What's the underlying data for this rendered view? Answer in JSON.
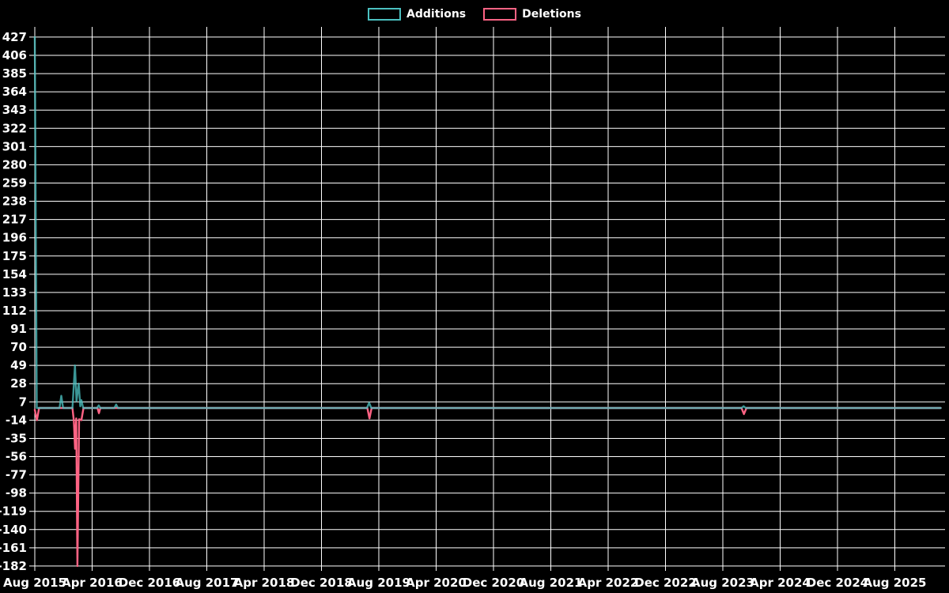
{
  "page": {
    "background": "#000000"
  },
  "legend": {
    "position": "top-center",
    "items": [
      {
        "label": "Additions",
        "color": "#4bc0c0"
      },
      {
        "label": "Deletions",
        "color": "#ff6384"
      }
    ]
  },
  "chart_data": {
    "type": "line",
    "title": "",
    "xlabel": "",
    "ylabel": "",
    "grid": true,
    "legend_position": "top-center",
    "background": "#000000",
    "grid_color": "#ffffff",
    "text_color": "#ffffff",
    "x_axis": {
      "start": "Aug 2015",
      "end": "Aug 2025",
      "tick_interval_months": 8,
      "tick_labels": [
        "Aug 2015",
        "Apr 2016",
        "Dec 2016",
        "Aug 2017",
        "Apr 2018",
        "Dec 2018",
        "Aug 2019",
        "Apr 2020",
        "Dec 2020",
        "Aug 2021",
        "Apr 2022",
        "Dec 2022",
        "Aug 2023",
        "Apr 2024",
        "Dec 2024",
        "Aug 2025"
      ]
    },
    "y_axis": {
      "min": -182,
      "max": 427,
      "step": 21,
      "tick_labels": [
        "427",
        "406",
        "385",
        "364",
        "343",
        "322",
        "301",
        "280",
        "259",
        "238",
        "217",
        "196",
        "175",
        "154",
        "133",
        "112",
        "91",
        "70",
        "49",
        "28",
        "7",
        "-14",
        "-35",
        "-56",
        "-77",
        "-98",
        "-119",
        "-140",
        "-161",
        "-182"
      ]
    },
    "x_unit": "months since Aug 2015",
    "series": [
      {
        "name": "Additions",
        "color": "#4bc0c0",
        "points": [
          [
            0,
            427
          ],
          [
            0.28,
            0
          ],
          [
            3.45,
            0
          ],
          [
            3.7,
            14
          ],
          [
            3.95,
            0
          ],
          [
            5.25,
            0
          ],
          [
            5.6,
            49
          ],
          [
            5.82,
            8
          ],
          [
            6.12,
            28
          ],
          [
            6.35,
            2
          ],
          [
            6.5,
            9
          ],
          [
            6.75,
            0
          ],
          [
            8.7,
            0
          ],
          [
            8.92,
            3
          ],
          [
            9.15,
            0
          ],
          [
            11.1,
            0
          ],
          [
            11.35,
            4
          ],
          [
            11.6,
            0
          ],
          [
            46.35,
            0
          ],
          [
            46.65,
            6
          ],
          [
            46.95,
            0
          ],
          [
            98.6,
            0
          ],
          [
            98.9,
            2
          ],
          [
            99.2,
            0
          ],
          [
            126.4,
            0
          ]
        ]
      },
      {
        "name": "Deletions",
        "color": "#ff6384",
        "points": [
          [
            0,
            -2
          ],
          [
            0.3,
            -14
          ],
          [
            0.6,
            0
          ],
          [
            5.25,
            0
          ],
          [
            5.45,
            -15
          ],
          [
            5.62,
            -47
          ],
          [
            5.78,
            -12
          ],
          [
            5.95,
            -182
          ],
          [
            6.18,
            -13
          ],
          [
            6.5,
            -14
          ],
          [
            6.8,
            0
          ],
          [
            8.75,
            0
          ],
          [
            8.95,
            -6
          ],
          [
            9.15,
            0
          ],
          [
            46.4,
            0
          ],
          [
            46.7,
            -12
          ],
          [
            47.0,
            0
          ],
          [
            98.6,
            0
          ],
          [
            98.95,
            -7
          ],
          [
            99.3,
            0
          ],
          [
            126.4,
            0
          ]
        ]
      }
    ]
  }
}
